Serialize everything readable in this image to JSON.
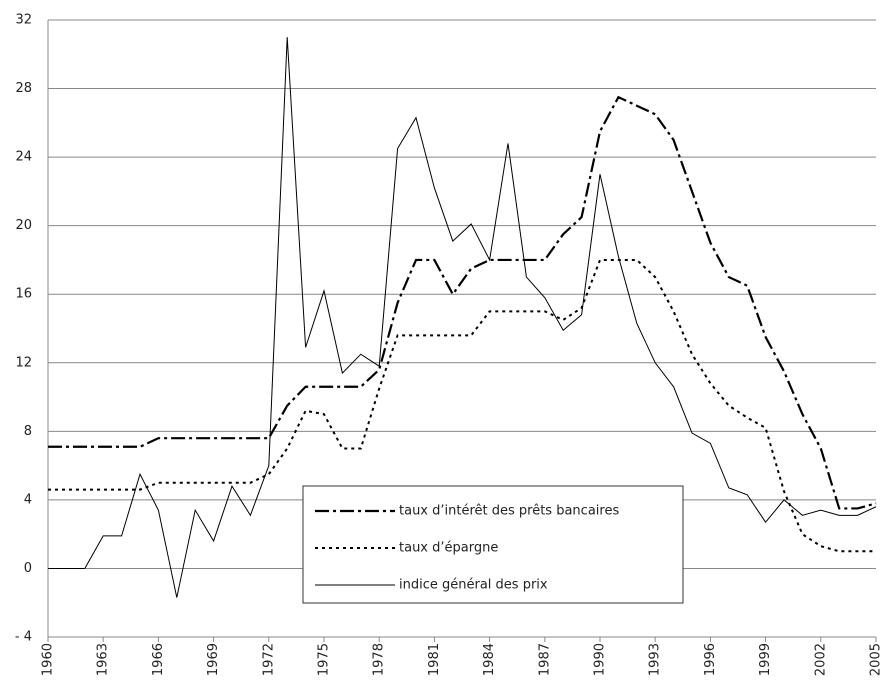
{
  "chart_data": {
    "type": "line",
    "x": [
      1960,
      1961,
      1962,
      1963,
      1964,
      1965,
      1966,
      1967,
      1968,
      1969,
      1970,
      1971,
      1972,
      1973,
      1974,
      1975,
      1976,
      1977,
      1978,
      1979,
      1980,
      1981,
      1982,
      1983,
      1984,
      1985,
      1986,
      1987,
      1988,
      1989,
      1990,
      1991,
      1992,
      1993,
      1994,
      1995,
      1996,
      1997,
      1998,
      1999,
      2000,
      2001,
      2002,
      2003,
      2004,
      2005
    ],
    "series": [
      {
        "name": "taux d’intérêt des prêts bancaires",
        "color": "#000000",
        "style": "dashdot",
        "values": [
          7.1,
          7.1,
          7.1,
          7.1,
          7.1,
          7.1,
          7.6,
          7.6,
          7.6,
          7.6,
          7.6,
          7.6,
          7.6,
          9.5,
          10.6,
          10.6,
          10.6,
          10.6,
          11.6,
          15.5,
          18,
          18,
          16,
          17.5,
          18,
          18,
          18,
          18,
          19.5,
          20.5,
          25.5,
          27.5,
          27,
          26.5,
          25,
          22,
          19,
          17,
          16.5,
          13.5,
          11.5,
          9,
          7,
          3.5,
          3.5,
          3.8
        ]
      },
      {
        "name": "taux d’épargne",
        "color": "#000000",
        "style": "dotted",
        "values": [
          4.6,
          4.6,
          4.6,
          4.6,
          4.6,
          4.6,
          5,
          5,
          5,
          5,
          5,
          5,
          5.5,
          7,
          9.2,
          9,
          7,
          7,
          10.5,
          13.6,
          13.6,
          13.6,
          13.6,
          13.6,
          15,
          15,
          15,
          15,
          14.5,
          15.2,
          18,
          18,
          18,
          17,
          15,
          12.5,
          10.8,
          9.5,
          8.8,
          8.2,
          4.5,
          2,
          1.3,
          1,
          1,
          1
        ]
      },
      {
        "name": "indice général des prix",
        "color": "#000000",
        "style": "solid",
        "values": [
          0,
          0,
          0,
          1.9,
          1.9,
          5.5,
          3.4,
          -1.7,
          3.4,
          1.6,
          4.8,
          3.1,
          6,
          31,
          12.9,
          16.2,
          11.4,
          12.5,
          11.8,
          24.5,
          26.3,
          22.2,
          19.1,
          20.1,
          18,
          24.8,
          17,
          15.8,
          13.9,
          14.8,
          23,
          18.2,
          14.3,
          12,
          10.6,
          7.9,
          7.3,
          4.7,
          4.3,
          2.7,
          4,
          3.1,
          3.4,
          3.1,
          3.1,
          3.6
        ]
      }
    ],
    "xlim": [
      1960,
      2005
    ],
    "xticks": [
      1960,
      1963,
      1966,
      1969,
      1972,
      1975,
      1978,
      1981,
      1984,
      1987,
      1990,
      1993,
      1996,
      1999,
      2002,
      2005
    ],
    "ylim": [
      -4,
      32
    ],
    "yticks": [
      {
        "value": -4,
        "label": "- 4"
      },
      0,
      4,
      8,
      12,
      16,
      20,
      24,
      28,
      32
    ],
    "grid": true
  }
}
